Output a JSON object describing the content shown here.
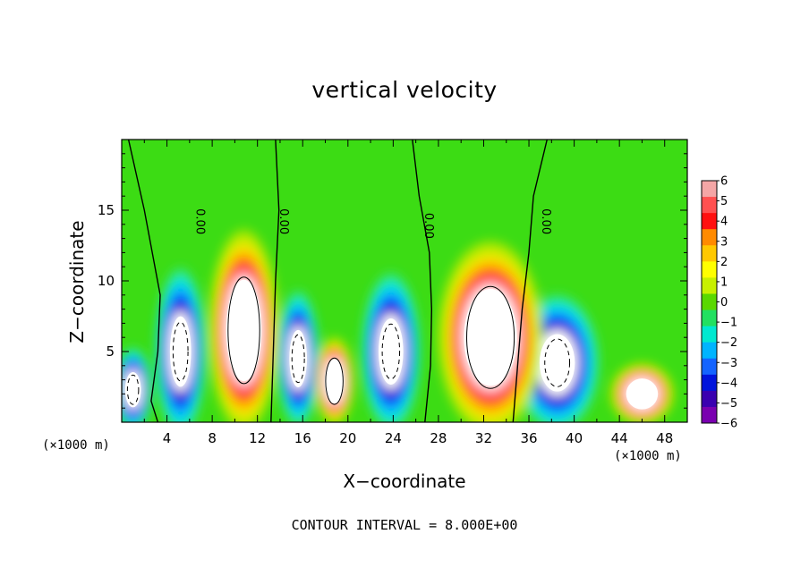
{
  "chart_data": {
    "type": "heatmap",
    "title": "vertical velocity",
    "xlabel": "X−coordinate",
    "ylabel": "Z−coordinate",
    "x_unit": "(×1000 m)",
    "z_unit": "(×1000 m)",
    "xlim": [
      0,
      50
    ],
    "ylim": [
      0,
      20
    ],
    "x_ticks": [
      4,
      8,
      12,
      16,
      20,
      24,
      28,
      32,
      36,
      40,
      44,
      48
    ],
    "y_ticks": [
      5,
      10,
      15
    ],
    "colorbar": {
      "min": -6,
      "max": 6,
      "ticks": [
        "6",
        "5",
        "4",
        "3",
        "2",
        "1",
        "0",
        "−1",
        "−2",
        "−3",
        "−4",
        "−5",
        "−6"
      ],
      "colors": [
        "#f4a6a6",
        "#ff5050",
        "#ff1010",
        "#ff8a00",
        "#ffc800",
        "#ffff00",
        "#c8f000",
        "#5ad800",
        "#22e060",
        "#00e8d0",
        "#00b4ff",
        "#1464ff",
        "#0014dc",
        "#3a00b0",
        "#7a00b0"
      ]
    },
    "contour_interval_text": "CONTOUR INTERVAL = 8.000E+00",
    "contour_labels": [
      "0.00",
      "0.00",
      "0.00",
      "0.00"
    ],
    "updraft_cores": [
      {
        "x": 10.8,
        "z": 6.5,
        "rx": 2.0,
        "rz": 4.6,
        "w": 6.5
      },
      {
        "x": 32.6,
        "z": 6.0,
        "rx": 3.0,
        "rz": 4.4,
        "w": 6.5
      },
      {
        "x": 18.8,
        "z": 2.9,
        "rx": 1.1,
        "rz": 2.0,
        "w": 4.5
      },
      {
        "x": 46.0,
        "z": 2.0,
        "rx": 1.8,
        "rz": 1.4,
        "w": 3.2
      }
    ],
    "downdraft_cores": [
      {
        "x": 1.0,
        "z": 2.3,
        "rx": 0.9,
        "rz": 1.6,
        "w": -6.5
      },
      {
        "x": 5.2,
        "z": 5.0,
        "rx": 1.2,
        "rz": 3.2,
        "w": -6.5
      },
      {
        "x": 15.6,
        "z": 4.5,
        "rx": 1.0,
        "rz": 2.6,
        "w": -6.5
      },
      {
        "x": 23.8,
        "z": 5.0,
        "rx": 1.4,
        "rz": 3.0,
        "w": -6.5
      },
      {
        "x": 38.5,
        "z": 4.2,
        "rx": 2.0,
        "rz": 2.6,
        "w": -6.5
      }
    ]
  }
}
